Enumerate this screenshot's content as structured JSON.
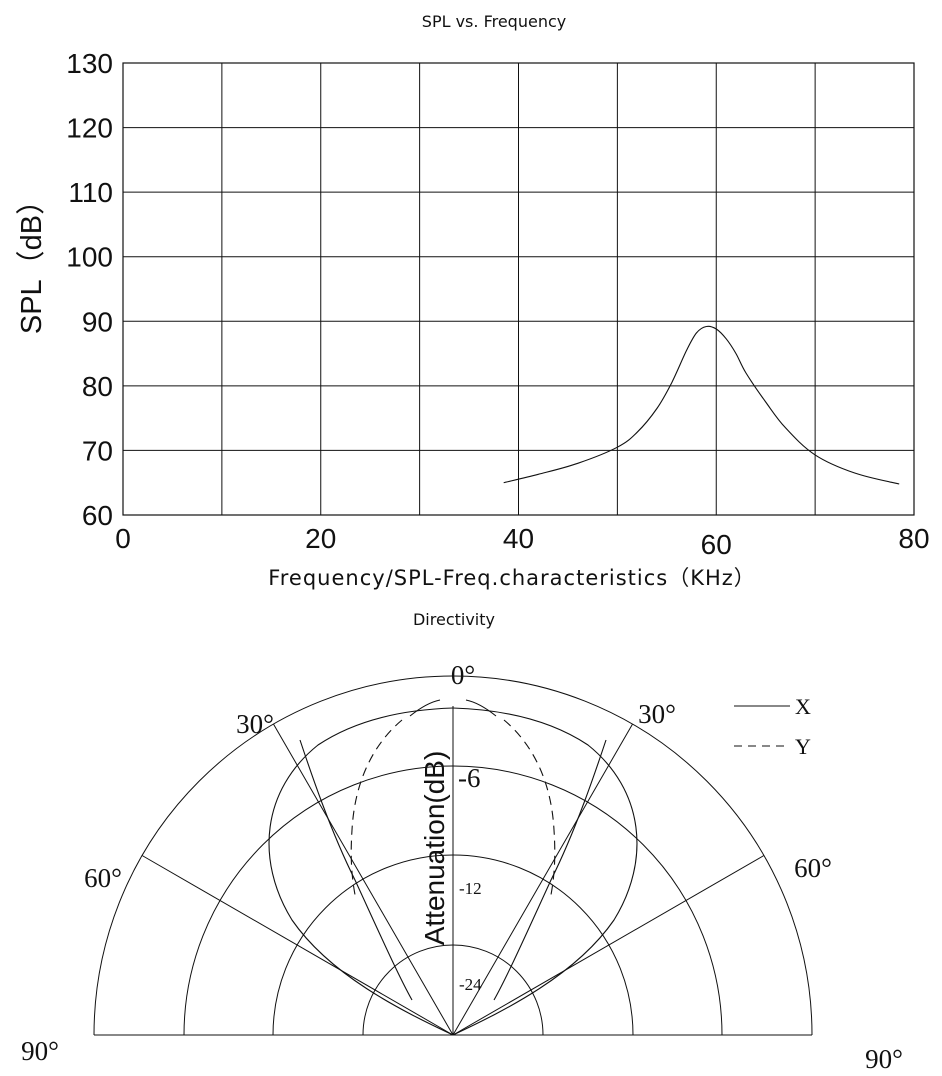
{
  "chart_data": [
    {
      "type": "line",
      "title": "SPL vs. Frequency",
      "xlabel": "Frequency/SPL-Freq.characteristics（KHz）",
      "ylabel": "SPL（dB）",
      "xlim": [
        0,
        80
      ],
      "ylim": [
        60,
        130
      ],
      "x_ticks": [
        "0",
        "20",
        "40",
        "60",
        "80"
      ],
      "y_ticks": [
        "60",
        "70",
        "80",
        "90",
        "100",
        "110",
        "120",
        "130"
      ],
      "grid": true,
      "series": [
        {
          "x": [
            38.5,
            42,
            46,
            50,
            52,
            54,
            55.5,
            57,
            58,
            59,
            60,
            61,
            62,
            63,
            65,
            67,
            70,
            74,
            78.5
          ],
          "y": [
            65.0,
            66.3,
            68.0,
            70.5,
            72.8,
            76.5,
            80.5,
            85.5,
            88.2,
            89.2,
            88.8,
            87.3,
            85.0,
            82.0,
            77.5,
            73.5,
            69.3,
            66.5,
            64.8
          ]
        }
      ]
    },
    {
      "type": "polar",
      "title": "Directivity",
      "angle_labels": {
        "top": "0°",
        "left30": "30°",
        "right30": "30°",
        "left60": "60°",
        "right60": "60°",
        "left90": "90°",
        "right90": "90°"
      },
      "radial_axis_label": "Attenuation(dB)",
      "radial_labels": [
        "-6",
        "-12",
        "-24"
      ],
      "legend": {
        "position": "top-right",
        "entries": [
          {
            "name": "X",
            "style": "solid"
          },
          {
            "name": "Y",
            "style": "dashed"
          }
        ]
      }
    }
  ]
}
